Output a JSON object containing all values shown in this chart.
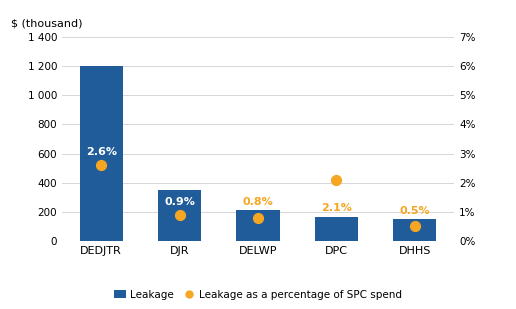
{
  "categories": [
    "DEDJTR",
    "DJR",
    "DELWP",
    "DPC",
    "DHHS"
  ],
  "leakage_values": [
    1200,
    350,
    210,
    165,
    150
  ],
  "pct_values": [
    2.6,
    0.9,
    0.8,
    2.1,
    0.5
  ],
  "pct_labels": [
    "2.6%",
    "0.9%",
    "0.8%",
    "2.1%",
    "0.5%"
  ],
  "bar_color": "#1F5C99",
  "dot_color": "#F5A623",
  "ylabel_left": "$ (thousand)",
  "ylim_left": [
    0,
    1400
  ],
  "ylim_right": [
    0,
    7
  ],
  "yticks_left": [
    0,
    200,
    400,
    600,
    800,
    1000,
    1200,
    1400
  ],
  "ytick_labels_left": [
    "0",
    "200",
    "400",
    "600",
    "800",
    "1 000",
    "1 200",
    "1 400"
  ],
  "yticks_right": [
    0,
    1,
    2,
    3,
    4,
    5,
    6,
    7
  ],
  "ytick_labels_right": [
    "0%",
    "1%",
    "2%",
    "3%",
    "4%",
    "5%",
    "6%",
    "7%"
  ],
  "legend_bar_label": "Leakage",
  "legend_dot_label": "Leakage as a percentage of SPC spend",
  "background_color": "#ffffff",
  "grid_color": "#d0d0d0",
  "label_inside_threshold": 250,
  "inside_label_color": "#ffffff",
  "outside_label_color": "#F5A623"
}
